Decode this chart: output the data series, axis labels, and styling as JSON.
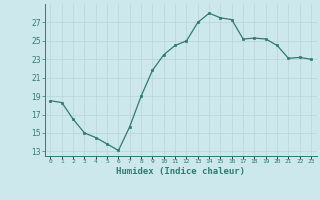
{
  "xlabel": "Humidex (Indice chaleur)",
  "x_values": [
    0,
    1,
    2,
    3,
    4,
    5,
    6,
    7,
    8,
    9,
    10,
    11,
    12,
    13,
    14,
    15,
    16,
    17,
    18,
    19,
    20,
    21,
    22,
    23
  ],
  "y_values": [
    18.5,
    18.3,
    16.5,
    15.0,
    14.5,
    13.8,
    13.1,
    15.7,
    19.0,
    21.8,
    23.5,
    24.5,
    25.0,
    27.0,
    28.0,
    27.5,
    27.3,
    25.2,
    25.3,
    25.2,
    24.5,
    23.1,
    23.2,
    23.0
  ],
  "line_color": "#2e7d6e",
  "marker_color": "#2e7d6e",
  "bg_color": "#cce8ec",
  "grid_color": "#b8d4d8",
  "axis_color": "#2e7d6e",
  "tick_color": "#2e7d6e",
  "ylim": [
    12.5,
    29.0
  ],
  "yticks": [
    13,
    15,
    17,
    19,
    21,
    23,
    25,
    27
  ],
  "xlim": [
    -0.5,
    23.5
  ]
}
